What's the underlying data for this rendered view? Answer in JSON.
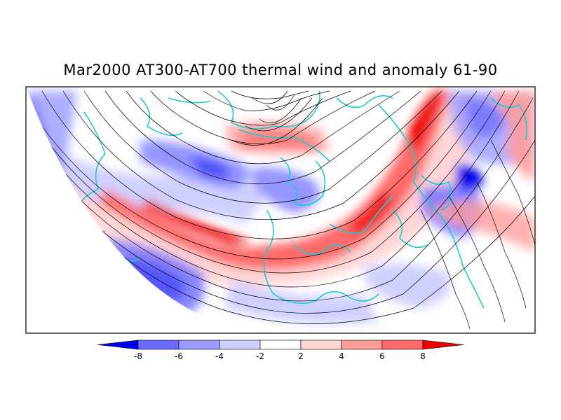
{
  "title": "Mar2000 AT300-AT700 thermal wind and anomaly 61-90",
  "colorbar": {
    "colors": [
      "#0000ee",
      "#6a6aff",
      "#9a9aff",
      "#d0d0ff",
      "#ffffff",
      "#ffd6d6",
      "#ff9d9d",
      "#ff6a6a",
      "#ee0000"
    ],
    "ticks": [
      "-8",
      "-6",
      "-4",
      "-2",
      "2",
      "4",
      "6",
      "8"
    ]
  },
  "map": {
    "land_color": "#1ecccc",
    "streamline_color": "#000000"
  }
}
